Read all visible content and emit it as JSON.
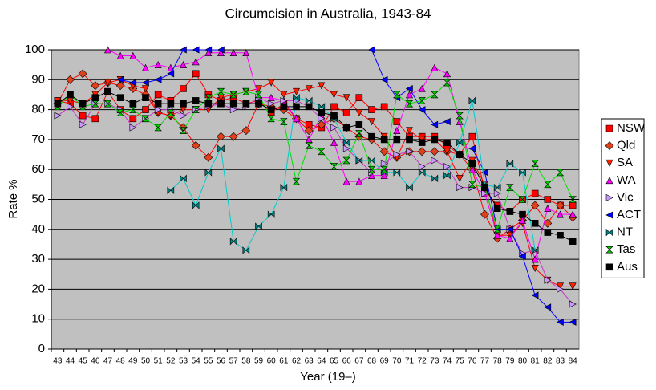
{
  "chart_data": {
    "type": "line",
    "title": "Circumcision in Australia, 1943-84",
    "x_label": "Year (19–)",
    "y_label": "Rate %",
    "categories": [
      "43",
      "44",
      "45",
      "46",
      "47",
      "48",
      "49",
      "50",
      "51",
      "52",
      "53",
      "54",
      "55",
      "56",
      "57",
      "58",
      "59",
      "60",
      "61",
      "62",
      "63",
      "64",
      "65",
      "66",
      "67",
      "68",
      "69",
      "70",
      "71",
      "72",
      "73",
      "74",
      "75",
      "76",
      "77",
      "78",
      "79",
      "80",
      "81",
      "82",
      "83",
      "84"
    ],
    "ylim": [
      0,
      100
    ],
    "yticks": [
      0,
      10,
      20,
      30,
      40,
      50,
      60,
      70,
      80,
      90,
      100
    ],
    "grid": true,
    "legend": "right",
    "series": [
      {
        "name": "NSW",
        "color": "#ff0000",
        "marker": "square",
        "marker_color": "#ff0000",
        "values": [
          83,
          82,
          78,
          77,
          86,
          80,
          77,
          80,
          85,
          83,
          87,
          92,
          85,
          83,
          84,
          82,
          83,
          79,
          82,
          77,
          75,
          74,
          81,
          79,
          84,
          80,
          81,
          76,
          71,
          71,
          71,
          68,
          65,
          71,
          53,
          48,
          46,
          50,
          52,
          50,
          48,
          48
        ]
      },
      {
        "name": "Qld",
        "color": "#ff0000",
        "marker": "diamond",
        "marker_color": "#e0401a",
        "values": [
          82,
          90,
          92,
          88,
          89,
          88,
          87,
          85,
          79,
          78,
          74,
          68,
          64,
          71,
          71,
          73,
          82,
          81,
          80,
          77,
          73,
          75,
          77,
          74,
          71,
          70,
          66,
          64,
          66,
          66,
          66,
          66,
          65,
          60,
          45,
          37,
          40,
          43,
          48,
          42,
          48,
          44
        ]
      },
      {
        "name": "SA",
        "color": "#ff0000",
        "marker": "triangle-down",
        "marker_color": "#ff2000",
        "values": [
          83,
          83,
          82,
          85,
          89,
          90,
          88,
          87,
          79,
          78,
          80,
          80,
          80,
          84,
          85,
          86,
          87,
          89,
          85,
          86,
          87,
          88,
          85,
          84,
          79,
          76,
          71,
          64,
          73,
          70,
          70,
          66,
          57,
          63,
          55,
          38,
          38,
          42,
          27,
          23,
          21,
          21
        ]
      },
      {
        "name": "WA",
        "color": "#ff00ff",
        "marker": "triangle-up",
        "marker_color": "#ff00ff",
        "values": [
          null,
          null,
          null,
          null,
          100,
          98,
          98,
          94,
          95,
          94,
          95,
          96,
          99,
          99,
          99,
          99,
          84,
          84,
          83,
          77,
          70,
          78,
          69,
          56,
          56,
          58,
          58,
          73,
          85,
          87,
          94,
          92,
          76,
          60,
          52,
          38,
          37,
          43,
          30,
          47,
          45,
          45
        ]
      },
      {
        "name": "Vic",
        "color": "#cc33cc",
        "marker": "triangle-right",
        "marker_color": "#cc99ff",
        "values": [
          78,
          81,
          75,
          82,
          82,
          80,
          74,
          77,
          80,
          80,
          78,
          80,
          81,
          82,
          80,
          81,
          84,
          82,
          83,
          83,
          81,
          77,
          74,
          67,
          63,
          59,
          62,
          65,
          66,
          61,
          63,
          61,
          54,
          54,
          52,
          52,
          40,
          32,
          33,
          23,
          20,
          15
        ]
      },
      {
        "name": "ACT",
        "color": "#0000ff",
        "marker": "triangle-left",
        "marker_color": "#0000ff",
        "values": [
          null,
          null,
          null,
          null,
          null,
          90,
          89,
          89,
          90,
          92,
          100,
          100,
          100,
          100,
          null,
          null,
          null,
          null,
          null,
          null,
          null,
          null,
          null,
          null,
          null,
          100,
          90,
          84,
          87,
          80,
          75,
          76,
          null,
          67,
          59,
          40,
          40,
          31,
          18,
          14,
          9,
          9
        ]
      },
      {
        "name": "NT",
        "color": "#00cccc",
        "marker": "bowtie",
        "marker_color": "#008080",
        "values": [
          null,
          null,
          null,
          null,
          null,
          null,
          null,
          null,
          null,
          53,
          57,
          48,
          59,
          67,
          36,
          33,
          41,
          45,
          54,
          84,
          83,
          81,
          77,
          69,
          63,
          63,
          59,
          59,
          54,
          59,
          57,
          58,
          69,
          83,
          55,
          54,
          62,
          59,
          33,
          null,
          null,
          null
        ]
      },
      {
        "name": "Tas",
        "color": "#00dd00",
        "marker": "hourglass",
        "marker_color": "#00cc00",
        "values": [
          81,
          85,
          81,
          82,
          82,
          79,
          80,
          77,
          74,
          79,
          73,
          80,
          84,
          86,
          85,
          86,
          85,
          77,
          76,
          56,
          68,
          66,
          61,
          63,
          72,
          60,
          60,
          85,
          82,
          83,
          85,
          89,
          78,
          55,
          54,
          40,
          54,
          50,
          62,
          55,
          59,
          50
        ]
      },
      {
        "name": "Aus",
        "color": "#000000",
        "marker": "square",
        "marker_color": "#000000",
        "values": [
          82,
          85,
          82,
          84,
          86,
          84,
          82,
          84,
          82,
          82,
          82,
          83,
          82,
          82,
          82,
          82,
          82,
          80,
          81,
          81,
          81,
          79,
          78,
          74,
          75,
          71,
          70,
          70,
          70,
          69,
          70,
          69,
          65,
          62,
          54,
          47,
          46,
          45,
          42,
          39,
          38,
          36
        ]
      }
    ]
  }
}
